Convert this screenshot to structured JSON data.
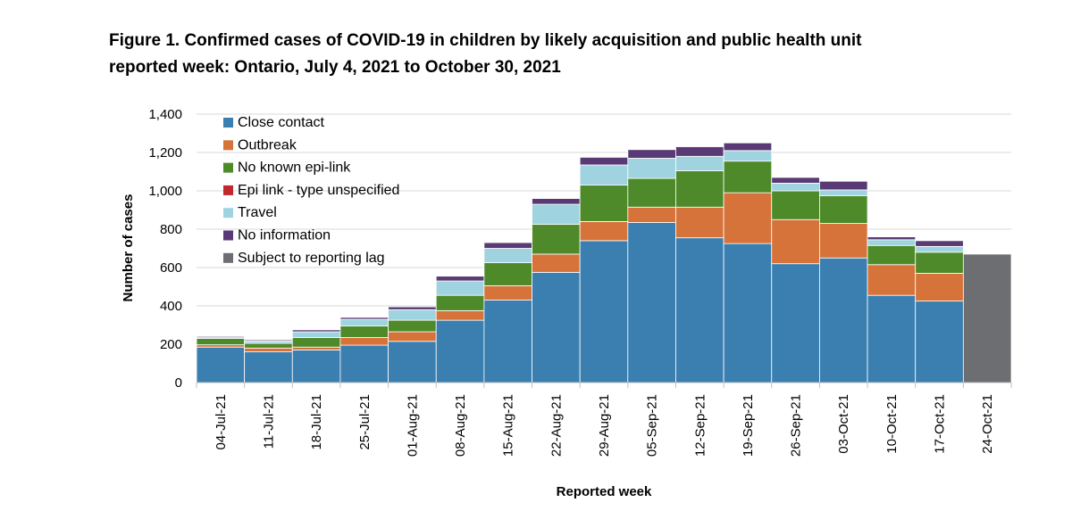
{
  "figure": {
    "title_line1": "Figure 1. Confirmed cases of COVID-19 in children by likely acquisition and public health unit",
    "title_line2": "reported week: Ontario, July 4, 2021 to October 30, 2021"
  },
  "chart_data": {
    "type": "bar",
    "stacked": true,
    "title": "Figure 1. Confirmed cases of COVID-19 in children by likely acquisition and public health unit reported week: Ontario, July 4, 2021 to October 30, 2021",
    "xlabel": "Reported week",
    "ylabel": "Number of cases",
    "ylim": [
      0,
      1400
    ],
    "yticks": [
      0,
      200,
      400,
      600,
      800,
      1000,
      1200,
      1400
    ],
    "ytick_labels": [
      "0",
      "200",
      "400",
      "600",
      "800",
      "1,000",
      "1,200",
      "1,400"
    ],
    "grid": true,
    "legend_position": "top-left",
    "categories": [
      "04-Jul-21",
      "11-Jul-21",
      "18-Jul-21",
      "25-Jul-21",
      "01-Aug-21",
      "08-Aug-21",
      "15-Aug-21",
      "22-Aug-21",
      "29-Aug-21",
      "05-Sep-21",
      "12-Sep-21",
      "19-Sep-21",
      "26-Sep-21",
      "03-Oct-21",
      "10-Oct-21",
      "17-Oct-21",
      "24-Oct-21"
    ],
    "series": [
      {
        "name": "Close contact",
        "color": "#3a7fb0",
        "values": [
          185,
          160,
          170,
          195,
          215,
          325,
          430,
          575,
          740,
          835,
          755,
          725,
          620,
          650,
          455,
          425,
          0
        ]
      },
      {
        "name": "Outbreak",
        "color": "#d6733b",
        "values": [
          12,
          20,
          15,
          40,
          50,
          50,
          75,
          95,
          100,
          80,
          160,
          265,
          230,
          180,
          160,
          145,
          0
        ]
      },
      {
        "name": "No known epi-link",
        "color": "#4e8a2a",
        "values": [
          33,
          25,
          50,
          60,
          60,
          80,
          120,
          155,
          190,
          150,
          190,
          165,
          150,
          145,
          100,
          110,
          0
        ]
      },
      {
        "name": "Epi link - type unspecified",
        "color": "#c1272d",
        "values": [
          0,
          0,
          0,
          0,
          0,
          0,
          0,
          0,
          0,
          0,
          0,
          0,
          0,
          0,
          0,
          0,
          0
        ]
      },
      {
        "name": "Travel",
        "color": "#9fd3e0",
        "values": [
          8,
          12,
          30,
          35,
          55,
          75,
          75,
          105,
          105,
          105,
          75,
          55,
          40,
          30,
          30,
          30,
          0
        ]
      },
      {
        "name": "No information",
        "color": "#5a3a75",
        "values": [
          5,
          6,
          10,
          10,
          15,
          25,
          30,
          30,
          40,
          45,
          50,
          40,
          30,
          45,
          15,
          30,
          0
        ]
      },
      {
        "name": "Subject to reporting lag",
        "color": "#6d6e71",
        "values": [
          0,
          0,
          0,
          0,
          0,
          0,
          0,
          0,
          0,
          0,
          0,
          0,
          0,
          0,
          0,
          0,
          670
        ]
      }
    ]
  }
}
